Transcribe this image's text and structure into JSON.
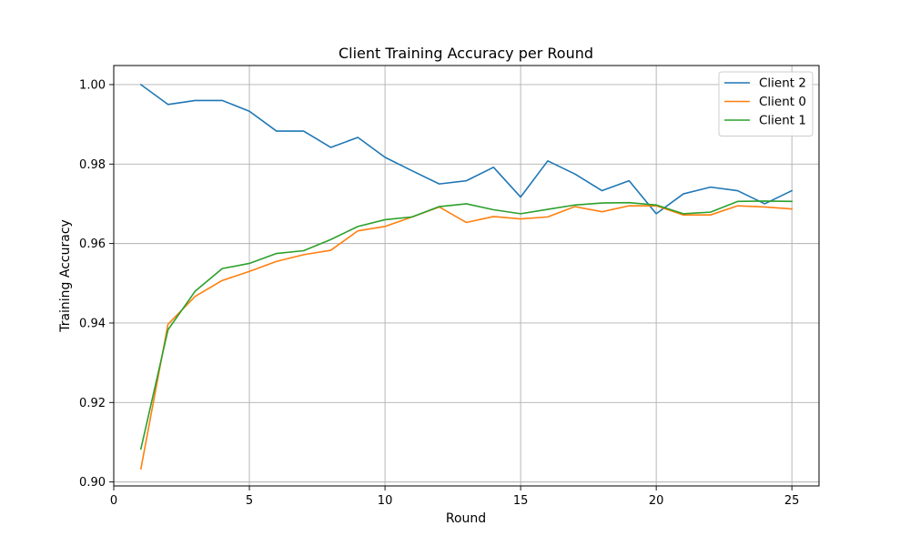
{
  "chart_data": {
    "type": "line",
    "title": "Client Training Accuracy per Round",
    "xlabel": "Round",
    "ylabel": "Training Accuracy",
    "xlim": [
      0,
      26
    ],
    "ylim": [
      0.899,
      1.0048
    ],
    "xticks": [
      0,
      5,
      10,
      15,
      20,
      25
    ],
    "yticks": [
      0.9,
      0.92,
      0.94,
      0.96,
      0.98,
      1.0
    ],
    "grid": true,
    "legend_position": "top-right",
    "x": [
      1,
      2,
      3,
      4,
      5,
      6,
      7,
      8,
      9,
      10,
      11,
      12,
      13,
      14,
      15,
      16,
      17,
      18,
      19,
      20,
      21,
      22,
      23,
      24,
      25
    ],
    "series": [
      {
        "name": "Client 2",
        "color": "#1f77b4",
        "values": [
          1.0,
          0.995,
          0.996,
          0.996,
          0.9933,
          0.9883,
          0.9883,
          0.9842,
          0.9867,
          0.9817,
          0.9783,
          0.975,
          0.9758,
          0.9792,
          0.9717,
          0.9808,
          0.9775,
          0.9733,
          0.9758,
          0.9675,
          0.9725,
          0.9742,
          0.9733,
          0.97,
          0.9733
        ]
      },
      {
        "name": "Client 0",
        "color": "#ff7f0e",
        "values": [
          0.9033,
          0.9397,
          0.9467,
          0.9507,
          0.953,
          0.9555,
          0.9572,
          0.9583,
          0.9632,
          0.9643,
          0.9667,
          0.9692,
          0.9653,
          0.9668,
          0.9662,
          0.9667,
          0.9693,
          0.968,
          0.9695,
          0.9695,
          0.9672,
          0.9672,
          0.9695,
          0.9692,
          0.9687
        ]
      },
      {
        "name": "Client 1",
        "color": "#2ca02c",
        "values": [
          0.9083,
          0.9383,
          0.948,
          0.9537,
          0.955,
          0.9575,
          0.9582,
          0.961,
          0.9643,
          0.966,
          0.9667,
          0.9693,
          0.97,
          0.9685,
          0.9675,
          0.9686,
          0.9697,
          0.9702,
          0.9703,
          0.9697,
          0.9675,
          0.9679,
          0.9706,
          0.9707,
          0.9706
        ]
      }
    ]
  }
}
